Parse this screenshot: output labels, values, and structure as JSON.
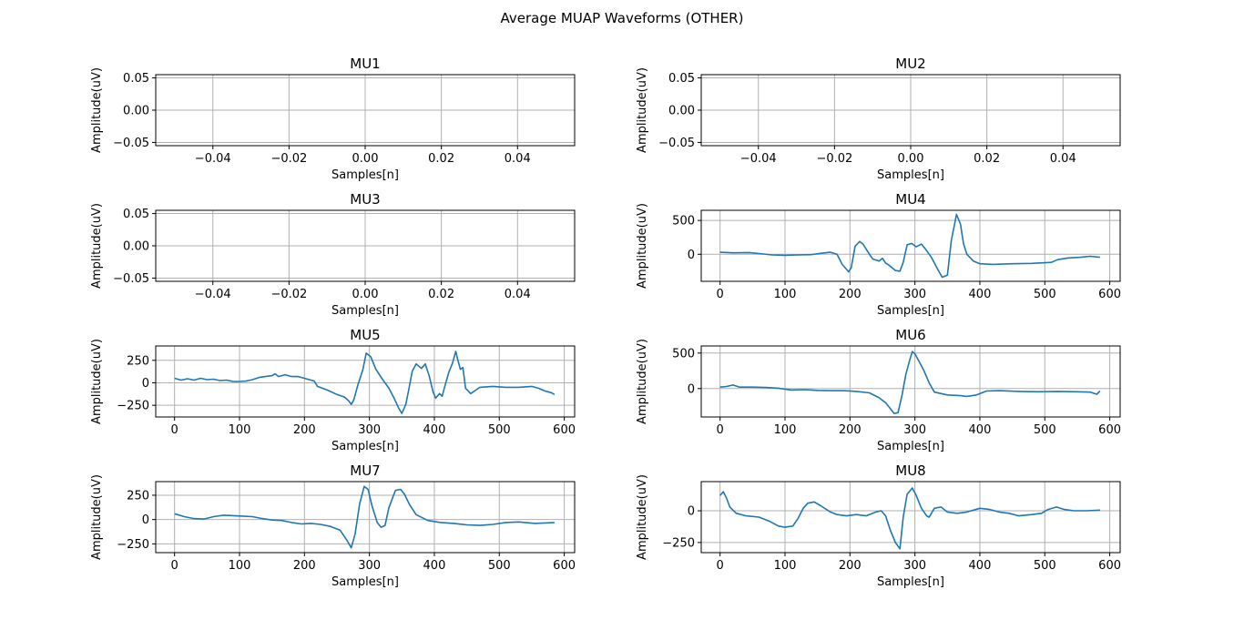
{
  "figure": {
    "title": "Average MUAP Waveforms (OTHER)"
  },
  "style": {
    "line_color": "#1f77b4",
    "grid_color": "#b0b0b0",
    "axes_color": "#000000"
  },
  "chart_data": [
    {
      "type": "line",
      "title": "MU1",
      "xlabel": "Samples[n]",
      "ylabel": "Amplitude(uV)",
      "xlim": [
        -0.055,
        0.055
      ],
      "ylim": [
        -0.055,
        0.055
      ],
      "xticks": [
        -0.04,
        -0.02,
        0.0,
        0.02,
        0.04
      ],
      "xtick_labels": [
        "−0.04",
        "−0.02",
        "0.00",
        "0.02",
        "0.04"
      ],
      "yticks": [
        -0.05,
        0.0,
        0.05
      ],
      "ytick_labels": [
        "−0.05",
        "0.00",
        "0.05"
      ],
      "grid": true,
      "points": []
    },
    {
      "type": "line",
      "title": "MU2",
      "xlabel": "Samples[n]",
      "ylabel": "Amplitude(uV)",
      "xlim": [
        -0.055,
        0.055
      ],
      "ylim": [
        -0.055,
        0.055
      ],
      "xticks": [
        -0.04,
        -0.02,
        0.0,
        0.02,
        0.04
      ],
      "xtick_labels": [
        "−0.04",
        "−0.02",
        "0.00",
        "0.02",
        "0.04"
      ],
      "yticks": [
        -0.05,
        0.0,
        0.05
      ],
      "ytick_labels": [
        "−0.05",
        "0.00",
        "0.05"
      ],
      "grid": true,
      "points": []
    },
    {
      "type": "line",
      "title": "MU3",
      "xlabel": "Samples[n]",
      "ylabel": "Amplitude(uV)",
      "xlim": [
        -0.055,
        0.055
      ],
      "ylim": [
        -0.055,
        0.055
      ],
      "xticks": [
        -0.04,
        -0.02,
        0.0,
        0.02,
        0.04
      ],
      "xtick_labels": [
        "−0.04",
        "−0.02",
        "0.00",
        "0.02",
        "0.04"
      ],
      "yticks": [
        -0.05,
        0.0,
        0.05
      ],
      "ytick_labels": [
        "−0.05",
        "0.00",
        "0.05"
      ],
      "grid": true,
      "points": []
    },
    {
      "type": "line",
      "title": "MU4",
      "xlabel": "Samples[n]",
      "ylabel": "Amplitude(uV)",
      "xlim": [
        -29,
        616
      ],
      "ylim": [
        -400,
        650
      ],
      "xticks": [
        0,
        100,
        200,
        300,
        400,
        500,
        600
      ],
      "xtick_labels": [
        "0",
        "100",
        "200",
        "300",
        "400",
        "500",
        "600"
      ],
      "yticks": [
        0,
        500
      ],
      "ytick_labels": [
        "0",
        "500"
      ],
      "grid": true,
      "points": [
        [
          0,
          30
        ],
        [
          20,
          22
        ],
        [
          45,
          25
        ],
        [
          60,
          10
        ],
        [
          80,
          -10
        ],
        [
          100,
          -15
        ],
        [
          120,
          -10
        ],
        [
          140,
          -5
        ],
        [
          160,
          20
        ],
        [
          170,
          30
        ],
        [
          180,
          0
        ],
        [
          188,
          -150
        ],
        [
          198,
          -260
        ],
        [
          202,
          -200
        ],
        [
          208,
          120
        ],
        [
          215,
          190
        ],
        [
          220,
          150
        ],
        [
          228,
          30
        ],
        [
          235,
          -70
        ],
        [
          245,
          -100
        ],
        [
          250,
          -60
        ],
        [
          255,
          -130
        ],
        [
          260,
          -160
        ],
        [
          270,
          -240
        ],
        [
          277,
          -250
        ],
        [
          282,
          -120
        ],
        [
          288,
          140
        ],
        [
          295,
          160
        ],
        [
          302,
          110
        ],
        [
          310,
          150
        ],
        [
          316,
          80
        ],
        [
          325,
          -40
        ],
        [
          335,
          -220
        ],
        [
          342,
          -340
        ],
        [
          350,
          -310
        ],
        [
          356,
          200
        ],
        [
          364,
          590
        ],
        [
          370,
          450
        ],
        [
          375,
          150
        ],
        [
          380,
          0
        ],
        [
          390,
          -100
        ],
        [
          400,
          -140
        ],
        [
          420,
          -150
        ],
        [
          450,
          -140
        ],
        [
          480,
          -135
        ],
        [
          510,
          -120
        ],
        [
          520,
          -80
        ],
        [
          535,
          -55
        ],
        [
          555,
          -45
        ],
        [
          570,
          -30
        ],
        [
          585,
          -45
        ]
      ]
    },
    {
      "type": "line",
      "title": "MU5",
      "xlabel": "Samples[n]",
      "ylabel": "Amplitude(uV)",
      "xlim": [
        -29,
        616
      ],
      "ylim": [
        -380,
        410
      ],
      "xticks": [
        0,
        100,
        200,
        300,
        400,
        500,
        600
      ],
      "xtick_labels": [
        "0",
        "100",
        "200",
        "300",
        "400",
        "500",
        "600"
      ],
      "yticks": [
        -250,
        0,
        250
      ],
      "ytick_labels": [
        "−250",
        "0",
        "250"
      ],
      "grid": true,
      "points": [
        [
          0,
          50
        ],
        [
          10,
          30
        ],
        [
          20,
          45
        ],
        [
          30,
          30
        ],
        [
          40,
          50
        ],
        [
          50,
          35
        ],
        [
          60,
          40
        ],
        [
          70,
          25
        ],
        [
          80,
          30
        ],
        [
          90,
          15
        ],
        [
          100,
          15
        ],
        [
          110,
          20
        ],
        [
          120,
          35
        ],
        [
          130,
          60
        ],
        [
          140,
          70
        ],
        [
          150,
          80
        ],
        [
          155,
          100
        ],
        [
          160,
          70
        ],
        [
          170,
          90
        ],
        [
          180,
          70
        ],
        [
          190,
          70
        ],
        [
          200,
          50
        ],
        [
          210,
          30
        ],
        [
          215,
          20
        ],
        [
          220,
          -40
        ],
        [
          235,
          -80
        ],
        [
          250,
          -130
        ],
        [
          262,
          -160
        ],
        [
          268,
          -200
        ],
        [
          272,
          -240
        ],
        [
          276,
          -190
        ],
        [
          282,
          -30
        ],
        [
          290,
          150
        ],
        [
          295,
          330
        ],
        [
          302,
          290
        ],
        [
          310,
          150
        ],
        [
          320,
          40
        ],
        [
          330,
          -60
        ],
        [
          338,
          -170
        ],
        [
          345,
          -280
        ],
        [
          350,
          -340
        ],
        [
          356,
          -240
        ],
        [
          360,
          -100
        ],
        [
          366,
          130
        ],
        [
          372,
          210
        ],
        [
          380,
          160
        ],
        [
          386,
          210
        ],
        [
          392,
          80
        ],
        [
          398,
          -100
        ],
        [
          402,
          -170
        ],
        [
          408,
          -120
        ],
        [
          412,
          -150
        ],
        [
          416,
          -40
        ],
        [
          422,
          110
        ],
        [
          428,
          220
        ],
        [
          433,
          350
        ],
        [
          436,
          260
        ],
        [
          440,
          150
        ],
        [
          444,
          170
        ],
        [
          448,
          -60
        ],
        [
          456,
          -120
        ],
        [
          470,
          -50
        ],
        [
          490,
          -40
        ],
        [
          510,
          -50
        ],
        [
          530,
          -50
        ],
        [
          550,
          -40
        ],
        [
          560,
          -60
        ],
        [
          570,
          -90
        ],
        [
          580,
          -110
        ],
        [
          585,
          -130
        ]
      ]
    },
    {
      "type": "line",
      "title": "MU6",
      "xlabel": "Samples[n]",
      "ylabel": "Amplitude(uV)",
      "xlim": [
        -29,
        616
      ],
      "ylim": [
        -400,
        600
      ],
      "xticks": [
        0,
        100,
        200,
        300,
        400,
        500,
        600
      ],
      "xtick_labels": [
        "0",
        "100",
        "200",
        "300",
        "400",
        "500",
        "600"
      ],
      "yticks": [
        0,
        500
      ],
      "ytick_labels": [
        "0",
        "500"
      ],
      "grid": true,
      "points": [
        [
          0,
          20
        ],
        [
          10,
          30
        ],
        [
          20,
          50
        ],
        [
          30,
          20
        ],
        [
          50,
          20
        ],
        [
          70,
          15
        ],
        [
          90,
          5
        ],
        [
          110,
          -20
        ],
        [
          130,
          -15
        ],
        [
          150,
          -25
        ],
        [
          170,
          -30
        ],
        [
          190,
          -30
        ],
        [
          210,
          -40
        ],
        [
          230,
          -60
        ],
        [
          245,
          -130
        ],
        [
          255,
          -200
        ],
        [
          262,
          -280
        ],
        [
          268,
          -350
        ],
        [
          274,
          -340
        ],
        [
          280,
          -100
        ],
        [
          286,
          200
        ],
        [
          292,
          400
        ],
        [
          296,
          520
        ],
        [
          300,
          490
        ],
        [
          306,
          390
        ],
        [
          314,
          250
        ],
        [
          322,
          80
        ],
        [
          330,
          -50
        ],
        [
          350,
          -90
        ],
        [
          370,
          -100
        ],
        [
          380,
          -110
        ],
        [
          395,
          -90
        ],
        [
          410,
          -35
        ],
        [
          430,
          -30
        ],
        [
          460,
          -40
        ],
        [
          490,
          -45
        ],
        [
          520,
          -40
        ],
        [
          550,
          -45
        ],
        [
          570,
          -50
        ],
        [
          580,
          -80
        ],
        [
          585,
          -35
        ]
      ]
    },
    {
      "type": "line",
      "title": "MU7",
      "xlabel": "Samples[n]",
      "ylabel": "Amplitude(uV)",
      "xlim": [
        -29,
        616
      ],
      "ylim": [
        -340,
        390
      ],
      "xticks": [
        0,
        100,
        200,
        300,
        400,
        500,
        600
      ],
      "xtick_labels": [
        "0",
        "100",
        "200",
        "300",
        "400",
        "500",
        "600"
      ],
      "yticks": [
        -250,
        0,
        250
      ],
      "ytick_labels": [
        "−250",
        "0",
        "250"
      ],
      "grid": true,
      "points": [
        [
          0,
          60
        ],
        [
          15,
          30
        ],
        [
          30,
          10
        ],
        [
          45,
          5
        ],
        [
          60,
          30
        ],
        [
          75,
          45
        ],
        [
          90,
          40
        ],
        [
          105,
          35
        ],
        [
          120,
          30
        ],
        [
          135,
          10
        ],
        [
          150,
          -5
        ],
        [
          165,
          -10
        ],
        [
          180,
          -30
        ],
        [
          195,
          -45
        ],
        [
          210,
          -40
        ],
        [
          225,
          -50
        ],
        [
          240,
          -70
        ],
        [
          255,
          -110
        ],
        [
          265,
          -210
        ],
        [
          272,
          -290
        ],
        [
          278,
          -150
        ],
        [
          285,
          160
        ],
        [
          292,
          340
        ],
        [
          298,
          310
        ],
        [
          304,
          140
        ],
        [
          312,
          -30
        ],
        [
          318,
          -80
        ],
        [
          324,
          -60
        ],
        [
          330,
          120
        ],
        [
          340,
          300
        ],
        [
          348,
          310
        ],
        [
          354,
          260
        ],
        [
          362,
          150
        ],
        [
          372,
          50
        ],
        [
          390,
          -10
        ],
        [
          410,
          -30
        ],
        [
          430,
          -40
        ],
        [
          450,
          -55
        ],
        [
          470,
          -60
        ],
        [
          490,
          -50
        ],
        [
          510,
          -30
        ],
        [
          530,
          -25
        ],
        [
          555,
          -40
        ],
        [
          570,
          -35
        ],
        [
          585,
          -30
        ]
      ]
    },
    {
      "type": "line",
      "title": "MU8",
      "xlabel": "Samples[n]",
      "ylabel": "Amplitude(uV)",
      "xlim": [
        -29,
        616
      ],
      "ylim": [
        -330,
        230
      ],
      "xticks": [
        0,
        100,
        200,
        300,
        400,
        500,
        600
      ],
      "xtick_labels": [
        "0",
        "100",
        "200",
        "300",
        "400",
        "500",
        "600"
      ],
      "yticks": [
        -250,
        0
      ],
      "ytick_labels": [
        "−250",
        "0"
      ],
      "grid": true,
      "points": [
        [
          0,
          120
        ],
        [
          5,
          150
        ],
        [
          10,
          100
        ],
        [
          15,
          30
        ],
        [
          25,
          -20
        ],
        [
          40,
          -40
        ],
        [
          60,
          -50
        ],
        [
          75,
          -80
        ],
        [
          90,
          -120
        ],
        [
          100,
          -130
        ],
        [
          112,
          -120
        ],
        [
          120,
          -60
        ],
        [
          128,
          20
        ],
        [
          135,
          60
        ],
        [
          145,
          70
        ],
        [
          155,
          40
        ],
        [
          170,
          -10
        ],
        [
          180,
          -30
        ],
        [
          195,
          -40
        ],
        [
          210,
          -30
        ],
        [
          225,
          -40
        ],
        [
          240,
          -10
        ],
        [
          248,
          0
        ],
        [
          255,
          -40
        ],
        [
          262,
          -150
        ],
        [
          270,
          -250
        ],
        [
          277,
          -300
        ],
        [
          282,
          -50
        ],
        [
          288,
          130
        ],
        [
          296,
          180
        ],
        [
          302,
          120
        ],
        [
          310,
          20
        ],
        [
          318,
          -40
        ],
        [
          322,
          -50
        ],
        [
          330,
          20
        ],
        [
          340,
          30
        ],
        [
          350,
          -10
        ],
        [
          365,
          -20
        ],
        [
          380,
          -10
        ],
        [
          400,
          20
        ],
        [
          415,
          10
        ],
        [
          430,
          -10
        ],
        [
          445,
          -20
        ],
        [
          460,
          -40
        ],
        [
          480,
          -30
        ],
        [
          495,
          -20
        ],
        [
          505,
          10
        ],
        [
          518,
          30
        ],
        [
          530,
          10
        ],
        [
          545,
          0
        ],
        [
          565,
          0
        ],
        [
          585,
          5
        ]
      ]
    }
  ]
}
